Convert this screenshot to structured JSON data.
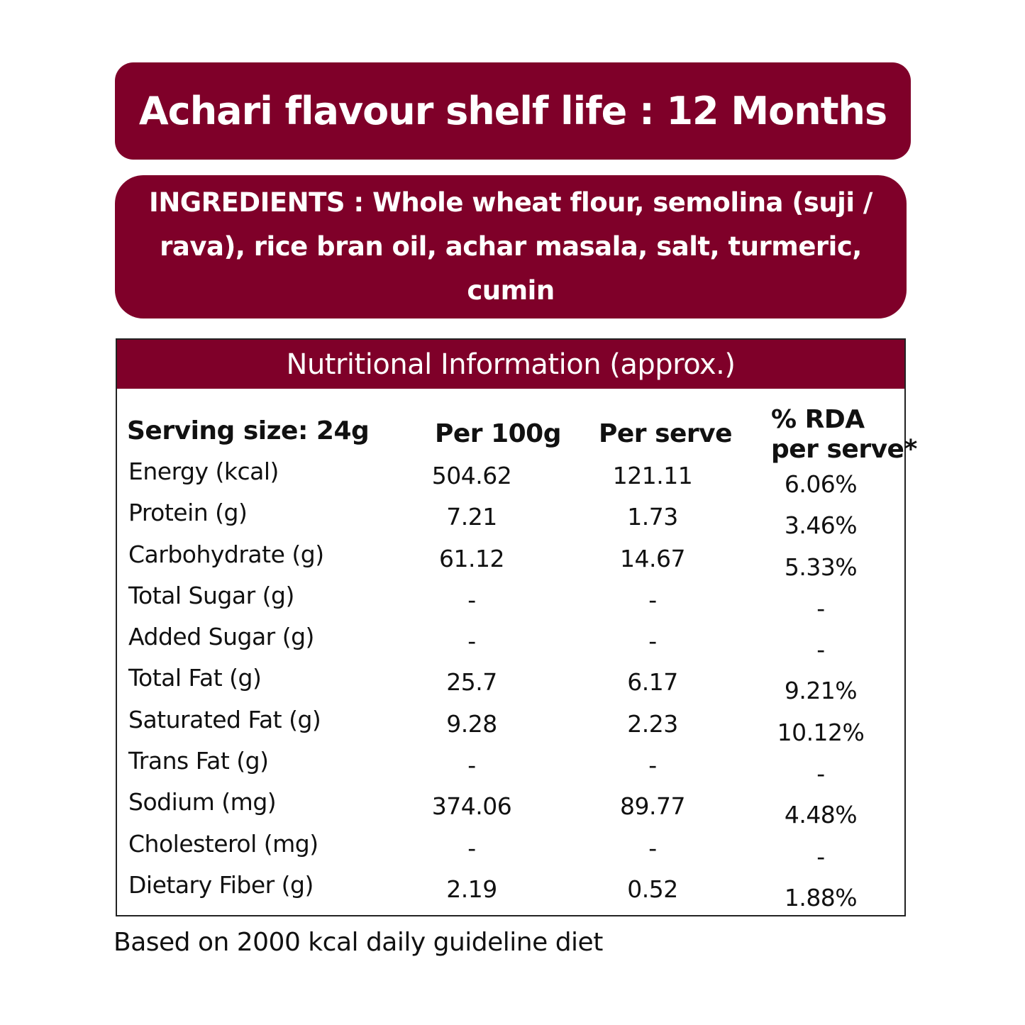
{
  "shelf_life": "Achari flavour shelf life : 12 Months",
  "ingredients": "INGREDIENTS : Whole wheat flour, semolina (suji / rava), rice bran oil, achar masala, salt, turmeric, cumin",
  "nutrition": {
    "title": "Nutritional Information (approx.)",
    "serving_size": "Serving size: 24g",
    "col_per100": "Per 100g",
    "col_perserve": "Per serve",
    "col_rda_line1": "% RDA",
    "col_rda_line2": "per serve*",
    "rows": [
      {
        "name": "Energy (kcal)",
        "per100": "504.62",
        "perserve": "121.11",
        "rda": "6.06%"
      },
      {
        "name": "Protein (g)",
        "per100": "7.21",
        "perserve": "1.73",
        "rda": "3.46%"
      },
      {
        "name": "Carbohydrate (g)",
        "per100": "61.12",
        "perserve": "14.67",
        "rda": "5.33%"
      },
      {
        "name": "Total Sugar (g)",
        "per100": "-",
        "perserve": "-",
        "rda": "-"
      },
      {
        "name": "Added Sugar (g)",
        "per100": "-",
        "perserve": "-",
        "rda": "-"
      },
      {
        "name": "Total Fat (g)",
        "per100": "25.7",
        "perserve": "6.17",
        "rda": "9.21%"
      },
      {
        "name": "Saturated Fat (g)",
        "per100": "9.28",
        "perserve": "2.23",
        "rda": "10.12%"
      },
      {
        "name": "Trans Fat (g)",
        "per100": "-",
        "perserve": "-",
        "rda": "-"
      },
      {
        "name": "Sodium (mg)",
        "per100": "374.06",
        "perserve": "89.77",
        "rda": "4.48%"
      },
      {
        "name": "Cholesterol (mg)",
        "per100": "-",
        "perserve": "-",
        "rda": "-"
      },
      {
        "name": "Dietary Fiber (g)",
        "per100": "2.19",
        "perserve": "0.52",
        "rda": "1.88%"
      }
    ]
  },
  "footnote": "Based on 2000 kcal daily guideline diet",
  "colors": {
    "brand": "#7f0029"
  }
}
